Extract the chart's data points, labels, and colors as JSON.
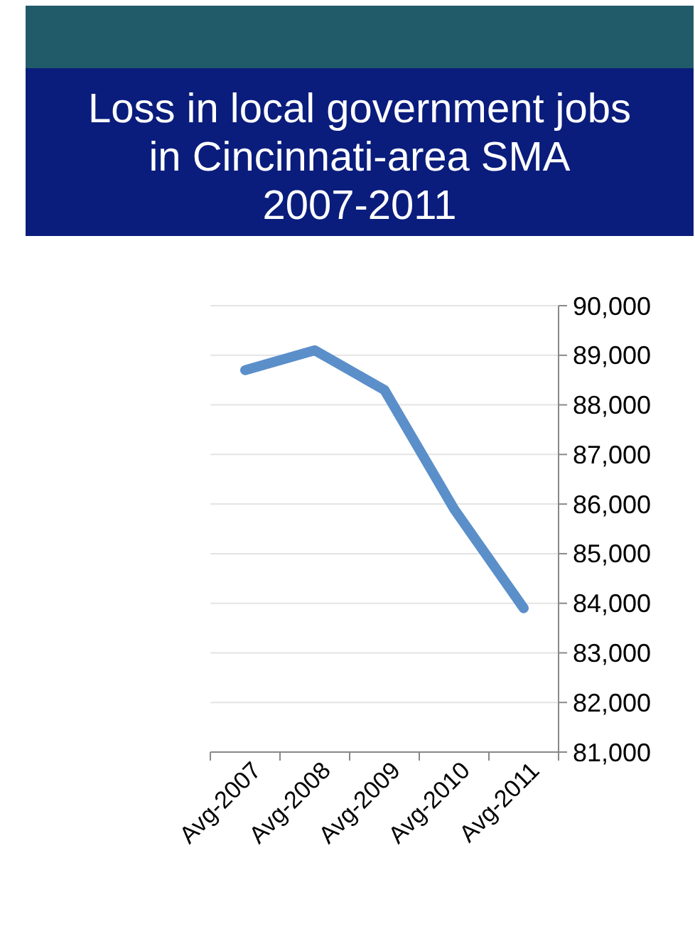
{
  "chart_data": {
    "type": "line",
    "title": "Loss in local government jobs\nin Cincinnati-area SMA\n2007-2011",
    "categories": [
      "Avg-2007",
      "Avg-2008",
      "Avg-2009",
      "Avg-2010",
      "Avg-2011"
    ],
    "series": [
      {
        "color": "#5b8fca",
        "values": [
          88700,
          89100,
          88300,
          85900,
          83900
        ]
      }
    ],
    "ylim": [
      81000,
      90000
    ],
    "yticks": [
      {
        "value": 81000,
        "label": "81,000"
      },
      {
        "value": 82000,
        "label": "82,000"
      },
      {
        "value": 83000,
        "label": "83,000"
      },
      {
        "value": 84000,
        "label": "84,000"
      },
      {
        "value": 85000,
        "label": "85,000"
      },
      {
        "value": 86000,
        "label": "86,000"
      },
      {
        "value": 87000,
        "label": "87,000"
      },
      {
        "value": 88000,
        "label": "88,000"
      },
      {
        "value": 89000,
        "label": "89,000"
      },
      {
        "value": 90000,
        "label": "90,000"
      }
    ],
    "grid": "y",
    "marker": "none",
    "line_style": "solid"
  }
}
